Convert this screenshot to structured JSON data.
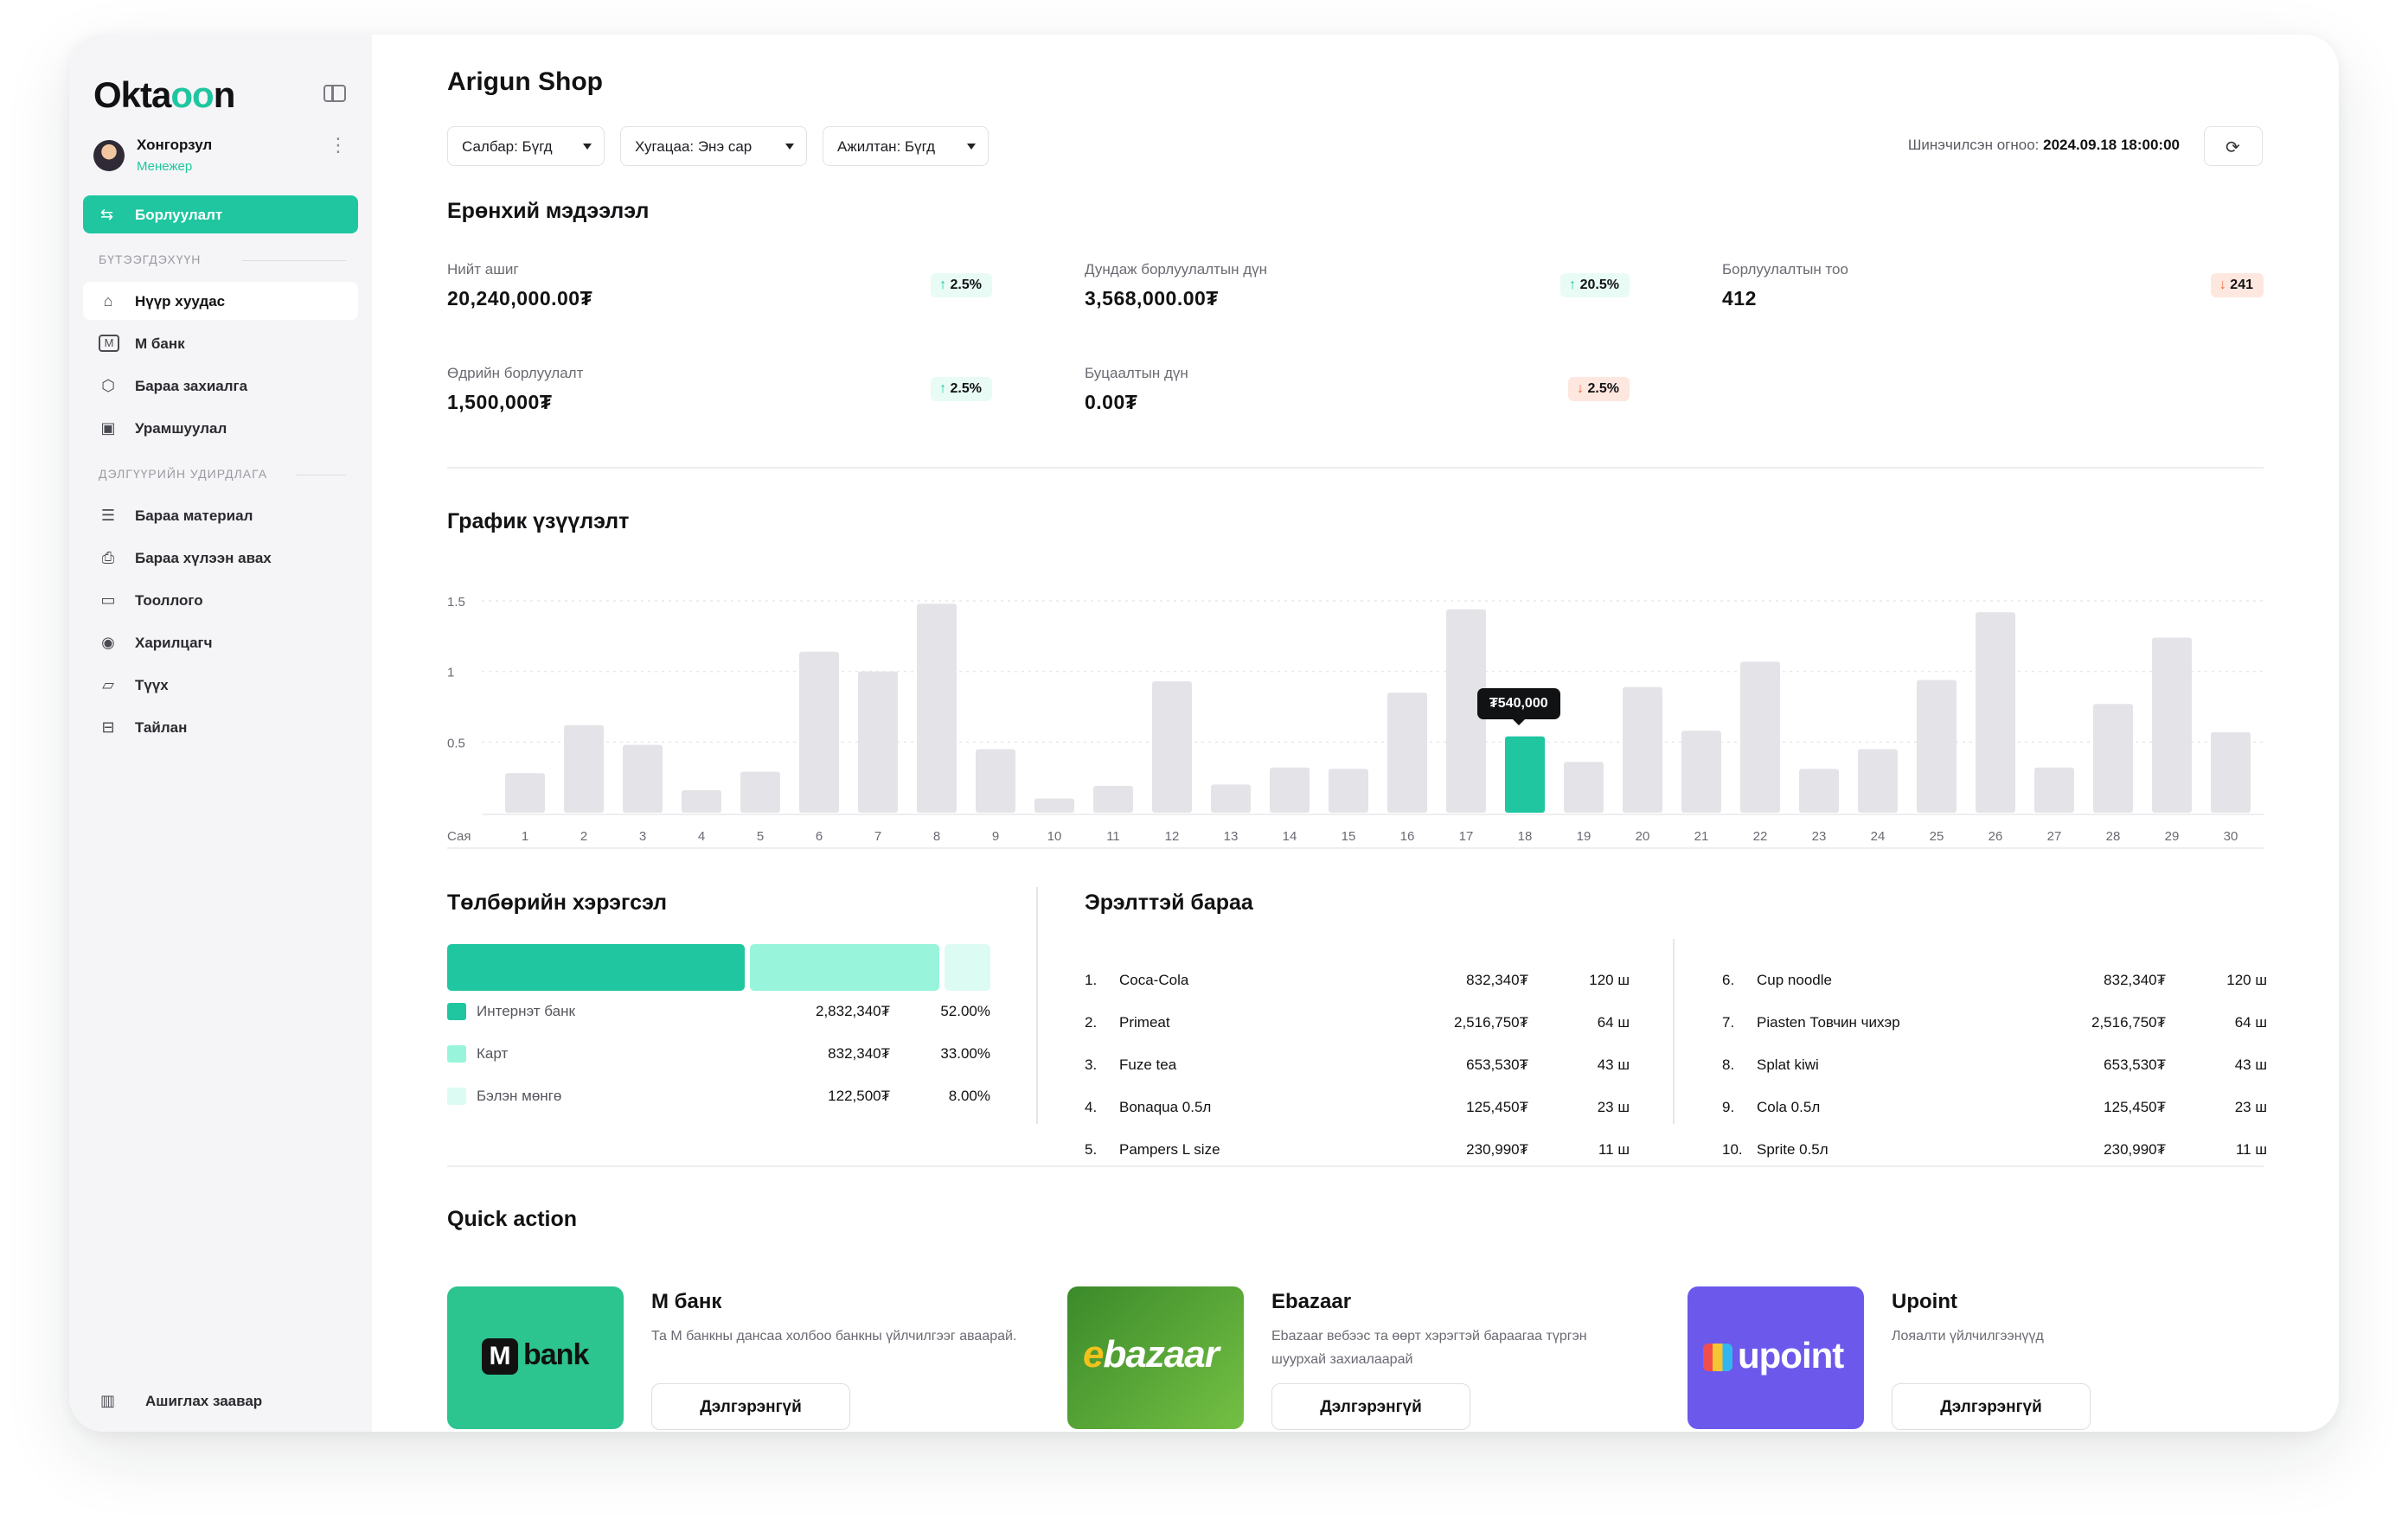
{
  "app": {
    "logo_prefix": "Okta",
    "logo_mid": "oo",
    "logo_suffix": "n"
  },
  "user": {
    "name": "Хонгорзул",
    "role": "Менежер"
  },
  "sidebar": {
    "primary": {
      "label": "Борлуулалт",
      "icon": "transfer-icon"
    },
    "section1_title": "БҮТЭЭГДЭХҮҮН",
    "section1": [
      {
        "label": "Нүүр хуудас",
        "icon": "home-icon"
      },
      {
        "label": "М банк",
        "icon": "m-bank-icon"
      },
      {
        "label": "Бараа захиалга",
        "icon": "box-icon"
      },
      {
        "label": "Урамшуулал",
        "icon": "gift-icon"
      }
    ],
    "section2_title": "ДЭЛГҮҮРИЙН УДИРДЛАГА",
    "section2": [
      {
        "label": "Бараа материал",
        "icon": "list-icon"
      },
      {
        "label": "Бараа хүлээн авах",
        "icon": "receive-icon"
      },
      {
        "label": "Тооллого",
        "icon": "folder-icon"
      },
      {
        "label": "Харилцагч",
        "icon": "user-circle-icon"
      },
      {
        "label": "Түүх",
        "icon": "folder-open-icon"
      },
      {
        "label": "Тайлан",
        "icon": "report-icon"
      }
    ],
    "help": {
      "label": "Ашиглах заавар",
      "icon": "book-icon"
    }
  },
  "header": {
    "title": "Arigun Shop",
    "filters": [
      "Салбар: Бүгд",
      "Хугацаа: Энэ сар",
      "Ажилтан: Бүгд"
    ],
    "updated_label": "Шинэчилсэн огноо:",
    "updated_value": "2024.09.18 18:00:00"
  },
  "overview": {
    "title": "Ерөнхий мэдээлэл",
    "stats": [
      {
        "label": "Нийт ашиг",
        "value": "20,240,000.00₮",
        "badge": "2.5%",
        "dir": "up"
      },
      {
        "label": "Дундаж борлуулалтын дүн",
        "value": "3,568,000.00₮",
        "badge": "20.5%",
        "dir": "up"
      },
      {
        "label": "Борлуулалтын тоо",
        "value": "412",
        "badge": "241",
        "dir": "down"
      },
      {
        "label": "Өдрийн борлуулалт",
        "value": "1,500,000₮",
        "badge": "2.5%",
        "dir": "up"
      },
      {
        "label": "Буцаалтын дүн",
        "value": "0.00₮",
        "badge": "2.5%",
        "dir": "down"
      }
    ]
  },
  "chart_section": {
    "title": "График үзүүлэлт",
    "tooltip": "₮540,000"
  },
  "chart_data": {
    "type": "bar",
    "title": "График үзүүлэлт",
    "xlabel": "Сая",
    "ylabel": "",
    "ylim": [
      0,
      1.5
    ],
    "y_ticks": [
      "0.5",
      "1",
      "1.5"
    ],
    "categories": [
      "1",
      "2",
      "3",
      "4",
      "5",
      "6",
      "7",
      "8",
      "9",
      "10",
      "11",
      "12",
      "13",
      "14",
      "15",
      "16",
      "17",
      "18",
      "19",
      "20",
      "21",
      "22",
      "23",
      "24",
      "25",
      "26",
      "27",
      "28",
      "29",
      "30"
    ],
    "values": [
      0.28,
      0.62,
      0.48,
      0.16,
      0.29,
      1.14,
      1.0,
      1.48,
      0.45,
      0.1,
      0.19,
      0.93,
      0.2,
      0.32,
      0.31,
      0.85,
      1.44,
      0.54,
      0.36,
      0.89,
      0.58,
      1.07,
      0.31,
      0.45,
      0.94,
      1.42,
      0.32,
      0.77,
      1.24,
      0.57
    ],
    "highlight_index": 17,
    "bar_color": "#e4e4e8",
    "highlight_color": "#1fc6a0",
    "grid": true
  },
  "payment": {
    "title": "Төлбөрийн хэрэгсэл",
    "items": [
      {
        "label": "Интернэт банк",
        "amount": "2,832,340₮",
        "percent": "52.00%",
        "share": 0.52,
        "color": "#1fc6a0"
      },
      {
        "label": "Карт",
        "amount": "832,340₮",
        "percent": "33.00%",
        "share": 0.33,
        "color": "#98f5dc"
      },
      {
        "label": "Бэлэн мөнгө",
        "amount": "122,500₮",
        "percent": "8.00%",
        "share": 0.08,
        "color": "#dcfbf2"
      }
    ]
  },
  "popular": {
    "title": "Эрэлттэй бараа",
    "items": [
      {
        "n": "1.",
        "name": "Coca-Cola",
        "amount": "832,340₮",
        "qty": "120 ш"
      },
      {
        "n": "2.",
        "name": "Primeat",
        "amount": "2,516,750₮",
        "qty": "64 ш"
      },
      {
        "n": "3.",
        "name": "Fuze tea",
        "amount": "653,530₮",
        "qty": "43 ш"
      },
      {
        "n": "4.",
        "name": "Bonaqua 0.5л",
        "amount": "125,450₮",
        "qty": "23 ш"
      },
      {
        "n": "5.",
        "name": "Pampers L size",
        "amount": "230,990₮",
        "qty": "11 ш"
      },
      {
        "n": "6.",
        "name": "Cup noodle",
        "amount": "832,340₮",
        "qty": "120 ш"
      },
      {
        "n": "7.",
        "name": "Piasten Товчин чихэр",
        "amount": "2,516,750₮",
        "qty": "64 ш"
      },
      {
        "n": "8.",
        "name": "Splat kiwi",
        "amount": "653,530₮",
        "qty": "43 ш"
      },
      {
        "n": "9.",
        "name": "Cola 0.5л",
        "amount": "125,450₮",
        "qty": "23 ш"
      },
      {
        "n": "10.",
        "name": "Sprite 0.5л",
        "amount": "230,990₮",
        "qty": "11 ш"
      }
    ]
  },
  "quick_action": {
    "title": "Quick action",
    "items": [
      {
        "title": "М банк",
        "desc": "Та М банкны дансаа холбоо банкны үйлчилгээг аваарай.",
        "button": "Дэлгэрэнгүй",
        "logo": "bank",
        "logo_m": "M",
        "color": "#2cc48f"
      },
      {
        "title": "Ebazaar",
        "desc": "Ebazaar вебээс та өөрт хэрэгтэй бараагаа түргэн шуурхай захиалаарай",
        "button": "Дэлгэрэнгүй",
        "logo": "ebazaar",
        "color": "#4e9a30"
      },
      {
        "title": "Upoint",
        "desc": "Лояалти үйлчилгээнүүд",
        "button": "Дэлгэрэнгүй",
        "logo": "upoint",
        "color": "#6c59ec"
      }
    ]
  }
}
